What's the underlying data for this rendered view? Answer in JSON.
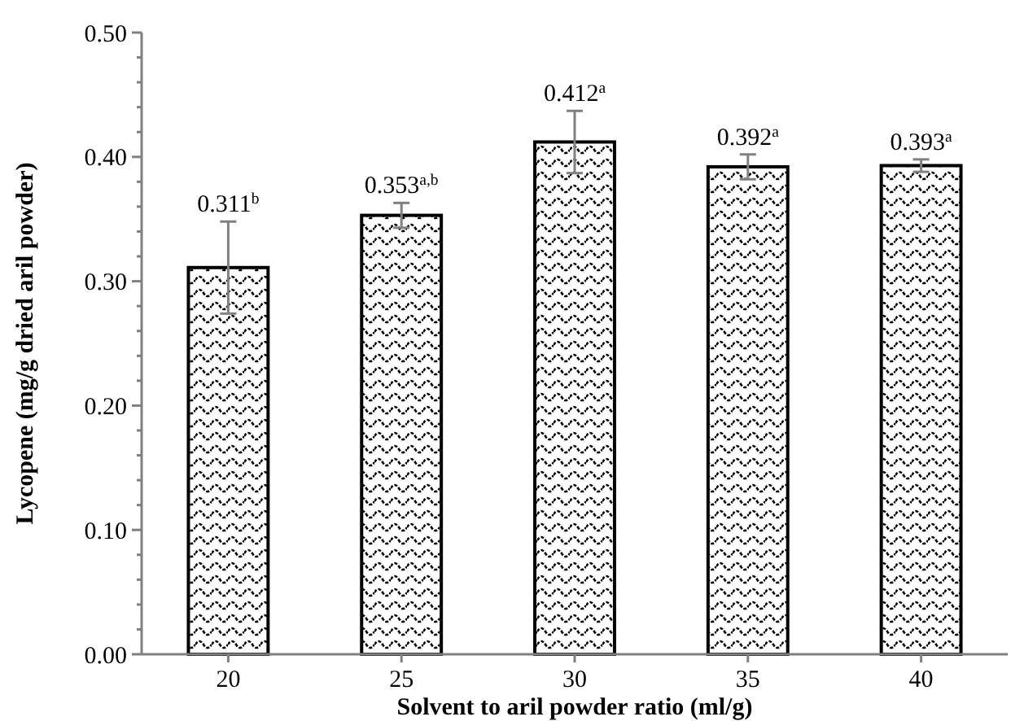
{
  "chart_data": {
    "type": "bar",
    "xlabel": "Solvent to aril powder ratio (ml/g)",
    "ylabel": "Lycopene (mg/g dried aril powder)",
    "categories": [
      "20",
      "25",
      "30",
      "35",
      "40"
    ],
    "values": [
      0.311,
      0.353,
      0.412,
      0.392,
      0.393
    ],
    "errors": [
      0.037,
      0.01,
      0.025,
      0.01,
      0.005
    ],
    "value_labels": [
      "0.311$^{b}$",
      "0.353$^{a,b}$",
      "0.412$^{a}$",
      "0.392$^{a}$",
      "0.393$^{a}$"
    ],
    "color": "#000000",
    "ylim": [
      0,
      0.5
    ],
    "yticks": [
      {
        "value": 0,
        "label": "0.00"
      },
      {
        "value": 0.1,
        "label": "0.10"
      },
      {
        "value": 0.2,
        "label": "0.20"
      },
      {
        "value": 0.3,
        "label": "0.30"
      },
      {
        "value": 0.4,
        "label": "0.40"
      },
      {
        "value": 0.5,
        "label": "0.50"
      }
    ],
    "grid": false
  }
}
